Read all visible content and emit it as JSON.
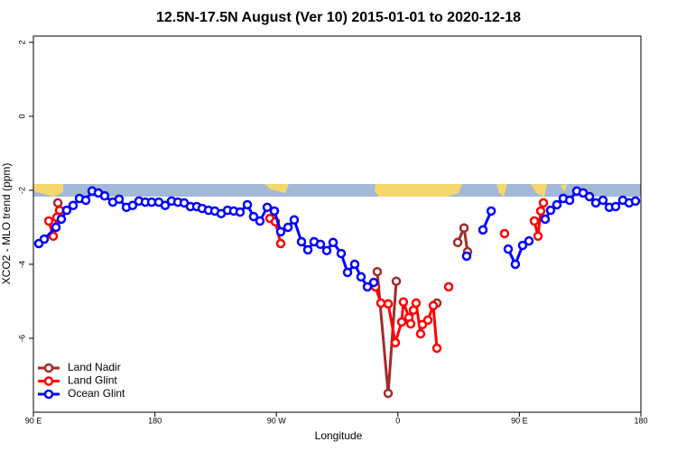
{
  "chart_data": {
    "type": "line",
    "title": "12.5N-17.5N August (Ver 10)   2015-01-01 to 2020-12-18",
    "x_label": "Longitude",
    "y_label": "XCO2 - MLO trend (ppm)",
    "xlim": [
      90,
      540
    ],
    "ylim": [
      -8,
      2.17
    ],
    "xticks": [
      {
        "value": 90,
        "label": "90 E"
      },
      180,
      {
        "value": 270,
        "label": "90 W"
      },
      {
        "value": 360,
        "label": "0"
      },
      {
        "value": 450,
        "label": "90 E"
      },
      {
        "value": 540,
        "label": "180"
      }
    ],
    "yticks": [
      -6,
      -4,
      -2,
      0,
      2
    ],
    "grid": false,
    "legend": "bottom-left",
    "series": [
      {
        "name": "Land Nadir",
        "color": "#a52a2a",
        "x": [
          108.1,
          null,
          344.7,
          352.8,
          358.8,
          null,
          388.9,
          null,
          404.3,
          409.0,
          411.6
        ],
        "values": [
          -2.34,
          null,
          -4.2,
          -7.49,
          -4.46,
          null,
          -5.05,
          null,
          -3.41,
          -3.02,
          -3.66
        ]
      },
      {
        "name": "Land Glint",
        "color": "#ff0000",
        "x": [
          101.4,
          104.7,
          107.4,
          109.4,
          null,
          265.2,
          269.2,
          273.2,
          null,
          343.4,
          347.4,
          352.8,
          358.1,
          362.8,
          364.1,
          368.1,
          369.5,
          371.5,
          373.5,
          376.8,
          378.2,
          382.2,
          386.2,
          388.9,
          null,
          397.6,
          null,
          439.0,
          null,
          461.1,
          463.8,
          465.8,
          467.8
        ],
        "values": [
          -2.83,
          -3.24,
          -2.73,
          -2.54,
          null,
          -2.76,
          -2.85,
          -3.44,
          null,
          -4.61,
          -5.05,
          -5.07,
          -6.12,
          -5.56,
          -5.02,
          -5.44,
          -5.61,
          -5.24,
          -5.05,
          -5.88,
          -5.63,
          -5.51,
          -5.12,
          -6.27,
          null,
          -4.61,
          null,
          -3.17,
          null,
          -2.83,
          -3.24,
          -2.56,
          -2.34
        ]
      },
      {
        "name": "Ocean Glint",
        "color": "#0000ff",
        "x": [
          94.0,
          98.0,
          106.7,
          110.7,
          114.7,
          119.4,
          124.1,
          128.8,
          133.5,
          138.1,
          142.8,
          148.8,
          153.5,
          158.9,
          163.5,
          168.2,
          172.9,
          177.6,
          182.9,
          187.6,
          192.3,
          197.0,
          201.7,
          206.3,
          211.0,
          215.0,
          219.7,
          224.4,
          229.1,
          233.8,
          238.4,
          243.1,
          248.5,
          253.1,
          257.8,
          263.2,
          268.5,
          273.2,
          278.6,
          283.2,
          288.6,
          293.3,
          297.9,
          302.6,
          307.3,
          312.0,
          318.0,
          322.7,
          328.0,
          332.7,
          337.4,
          342.1,
          null,
          410.9,
          null,
          423.0,
          429.1,
          null,
          441.7,
          447.0,
          452.4,
          457.1,
          null,
          469.1,
          473.1,
          477.8,
          482.5,
          487.2,
          492.5,
          497.2,
          501.9,
          506.6,
          511.9,
          516.6,
          521.3,
          526.6,
          531.3,
          536.0
        ],
        "values": [
          -3.44,
          -3.32,
          -3.0,
          -2.78,
          -2.54,
          -2.41,
          -2.22,
          -2.27,
          -2.02,
          -2.07,
          -2.15,
          -2.32,
          -2.24,
          -2.46,
          -2.41,
          -2.29,
          -2.32,
          -2.32,
          -2.32,
          -2.41,
          -2.29,
          -2.32,
          -2.34,
          -2.44,
          -2.44,
          -2.49,
          -2.54,
          -2.56,
          -2.63,
          -2.54,
          -2.56,
          -2.59,
          -2.39,
          -2.71,
          -2.83,
          -2.46,
          -2.56,
          -3.12,
          -3.0,
          -2.8,
          -3.39,
          -3.61,
          -3.39,
          -3.46,
          -3.63,
          -3.41,
          -3.71,
          -4.22,
          -4.0,
          -4.34,
          -4.61,
          -4.49,
          null,
          -3.78,
          null,
          -3.07,
          -2.56,
          null,
          -3.59,
          -4.0,
          -3.49,
          -3.37,
          null,
          -2.78,
          -2.54,
          -2.39,
          -2.22,
          -2.27,
          -2.02,
          -2.07,
          -2.17,
          -2.34,
          -2.27,
          -2.46,
          -2.44,
          -2.27,
          -2.34,
          -2.29
        ]
      }
    ]
  }
}
